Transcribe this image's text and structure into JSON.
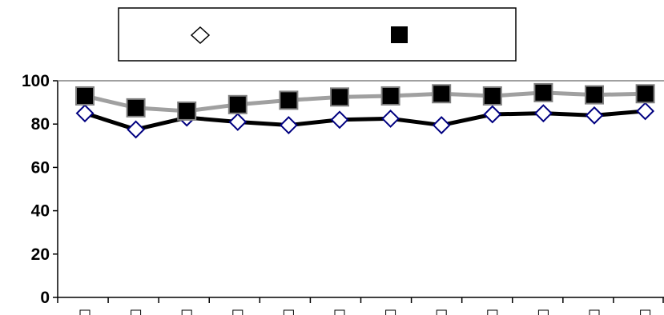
{
  "chart_data": {
    "type": "line",
    "title": "",
    "xlabel": "",
    "ylabel": "",
    "ylim": [
      0,
      100
    ],
    "yticks": [
      0,
      20,
      40,
      60,
      80,
      100
    ],
    "grid": false,
    "legend_placement": "top",
    "x": [
      1,
      2,
      3,
      4,
      5,
      6,
      7,
      8,
      9,
      10,
      11,
      12
    ],
    "series": [
      {
        "values": [
          85,
          77.5,
          83,
          81,
          79.5,
          82,
          82.5,
          79.5,
          84.5,
          85,
          84,
          86
        ],
        "line_color": "#000000",
        "marker": "open-diamond",
        "marker_color": "#000080"
      },
      {
        "values": [
          93,
          87.5,
          86,
          89,
          91,
          92.5,
          93,
          94,
          93,
          94.5,
          93.5,
          94
        ],
        "line_color": "#a0a0a0",
        "marker": "filled-square",
        "marker_color": "#000000"
      }
    ]
  }
}
